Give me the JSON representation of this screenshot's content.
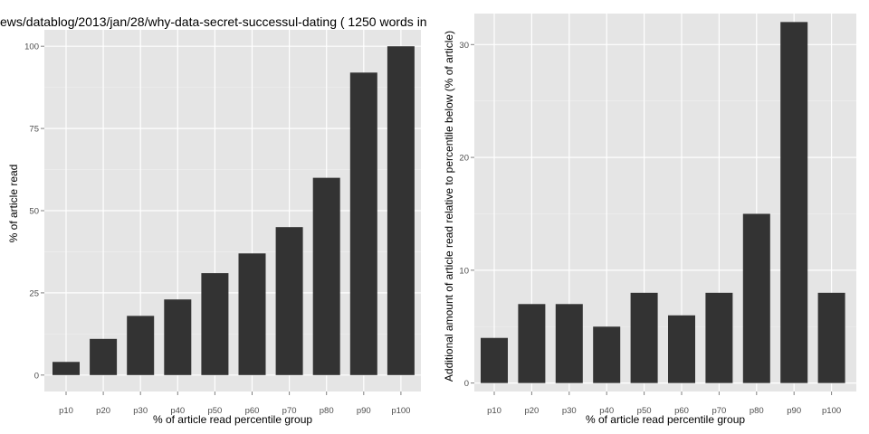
{
  "page": {
    "title": "ews/datablog/2013/jan/28/why-data-secret-successul-dating ( 1250 words in"
  },
  "colors": {
    "panel": "#e5e5e5",
    "grid_major": "#ffffff",
    "grid_minor": "#f0f0f0",
    "bar": "#333333"
  },
  "chart_data": [
    {
      "type": "bar",
      "categories": [
        "p10",
        "p20",
        "p30",
        "p40",
        "p50",
        "p60",
        "p70",
        "p80",
        "p90",
        "p100"
      ],
      "values": [
        4,
        11,
        18,
        23,
        31,
        37,
        45,
        60,
        92,
        100
      ],
      "xlabel": "% of article read percentile group",
      "ylabel": "% of article read",
      "ylim": [
        0,
        100
      ],
      "yticks": [
        0,
        25,
        50,
        75,
        100
      ],
      "grid": true,
      "legend": "none"
    },
    {
      "type": "bar",
      "categories": [
        "p10",
        "p20",
        "p30",
        "p40",
        "p50",
        "p60",
        "p70",
        "p80",
        "p90",
        "p100"
      ],
      "values": [
        4,
        7,
        7,
        5,
        8,
        6,
        8,
        15,
        32,
        8
      ],
      "xlabel": "% of article read percentile group",
      "ylabel": "Additional amount of article read relative to percentile below (% of article)",
      "ylim": [
        0,
        32
      ],
      "yticks": [
        0,
        10,
        20,
        30
      ],
      "grid": true,
      "legend": "none"
    }
  ]
}
